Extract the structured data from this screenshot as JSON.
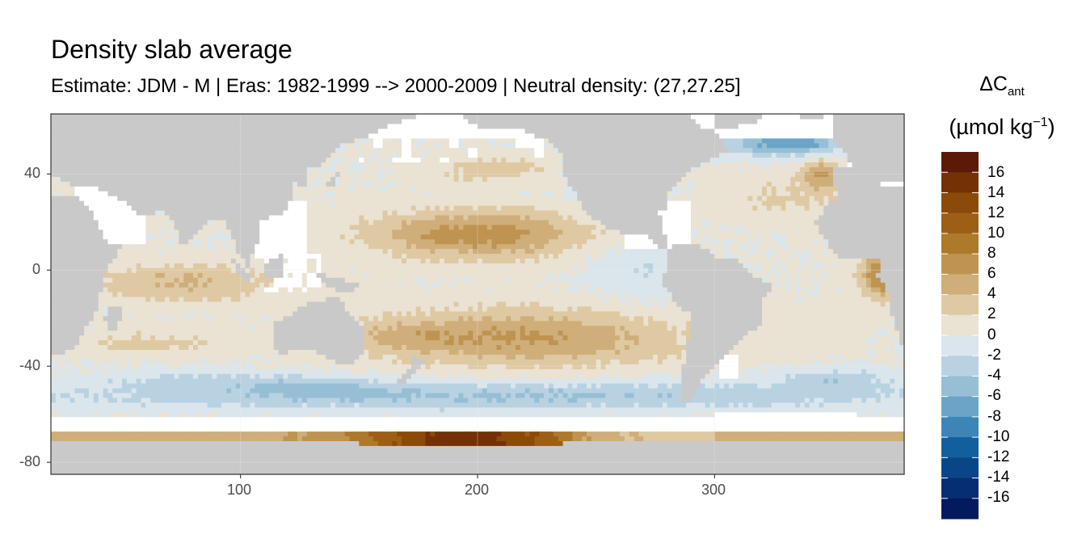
{
  "title": "Density slab average",
  "subtitle": "Estimate: JDM - M | Eras: 1982-1999 --> 2000-2009 | Neutral density: (27,27.25]",
  "colors": {
    "land": "#c9c9c9",
    "no_data": "#ffffff",
    "panel_border": "#333333",
    "grid": "#ebebeb"
  },
  "axes": {
    "x_ticks": [
      "100",
      "200",
      "300"
    ],
    "y_ticks": [
      "40",
      "0",
      "-40",
      "-80"
    ],
    "x_range": [
      20,
      380
    ],
    "y_range": [
      -85,
      65
    ]
  },
  "legend": {
    "title_line1": "ΔC",
    "title_sub": "ant",
    "title_line2_prefix": "(µmol kg",
    "title_line2_sup": "−1",
    "title_line2_suffix": ")",
    "labels": [
      "16",
      "14",
      "12",
      "10",
      "8",
      "6",
      "4",
      "2",
      "0",
      "-2",
      "-4",
      "-6",
      "-8",
      "-10",
      "-12",
      "-14",
      "-16"
    ],
    "colors_top_to_bottom": [
      "#5b1a05",
      "#743105",
      "#8c4a08",
      "#9d5f15",
      "#ad792a",
      "#bf9350",
      "#cfae7a",
      "#dfc9a2",
      "#eae2d2",
      "#dbe6ec",
      "#b8d2e2",
      "#96bfd6",
      "#6aa5c8",
      "#3d85b6",
      "#125f9d",
      "#0a4687",
      "#062f72",
      "#041a5e"
    ]
  },
  "chart_data": {
    "type": "heatmap",
    "title": "Density slab average",
    "subtitle": "Estimate: JDM - M | Eras: 1982-1999 --> 2000-2009 | Neutral density: (27,27.25]",
    "xlabel": "",
    "ylabel": "",
    "xlim": [
      20,
      380
    ],
    "ylim": [
      -85,
      65
    ],
    "x_ticks": [
      100,
      200,
      300
    ],
    "y_ticks": [
      40,
      0,
      -40,
      -80
    ],
    "legend_title": "ΔCant (µmol kg−1)",
    "legend_placement": "right",
    "scale_breaks": [
      16,
      14,
      12,
      10,
      8,
      6,
      4,
      2,
      0,
      -2,
      -4,
      -6,
      -8,
      -10,
      -12,
      -14,
      -16
    ],
    "grid": true,
    "features": [
      {
        "region": "Southern Ocean Antarctic margin (lon 150-240, lat -78 to -68)",
        "value": 14
      },
      {
        "region": "Southern Ocean Antarctic margin (lon 20-150, lat -72 to -68)",
        "value": 8
      },
      {
        "region": "South Pacific subtropics (lon 170-280, lat -40 to -15)",
        "value": 6
      },
      {
        "region": "North Pacific subtropics (lon 170-230, lat 10 to 25)",
        "value": 8
      },
      {
        "region": "Tropical Atlantic east (lon 360-375, lat -10 to 5)",
        "value": 8
      },
      {
        "region": "Indian Ocean tropics (lon 40-110, lat -15 to 0)",
        "value": 4
      },
      {
        "region": "Southern Ocean ACC band (lon 20-360, lat -60 to -45)",
        "value": -4
      },
      {
        "region": "Subpolar North Atlantic (lon 320-360, lat 50 to 60)",
        "value": -10
      },
      {
        "region": "Subtropical North Atlantic (lon 300-360, lat 15 to 40)",
        "value": 2
      }
    ]
  }
}
